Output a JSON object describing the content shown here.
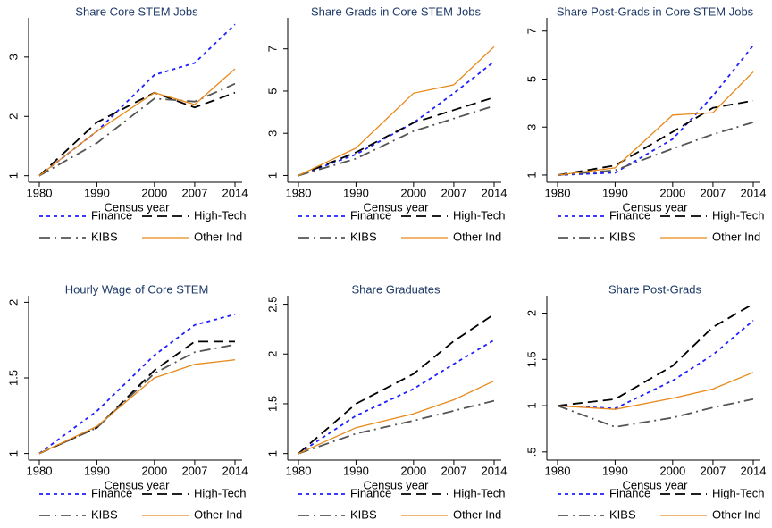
{
  "chart_data": [
    {
      "type": "line",
      "title": "Share Core STEM Jobs",
      "xlabel": "Census year",
      "x": [
        1980,
        1990,
        2000,
        2007,
        2014
      ],
      "xlim": [
        1980,
        2014
      ],
      "xticks": [
        1980,
        1990,
        2000,
        2007,
        2014
      ],
      "ylim": [
        0.95,
        3.6
      ],
      "yticks": [
        1,
        2,
        3
      ],
      "legend": "bottom",
      "series": [
        {
          "name": "Finance",
          "color": "#1f1fff",
          "values": [
            1,
            1.75,
            2.7,
            2.9,
            3.55
          ]
        },
        {
          "name": "High-Tech",
          "color": "#000000",
          "values": [
            1,
            1.9,
            2.4,
            2.15,
            2.4
          ]
        },
        {
          "name": "KIBS",
          "color": "#555555",
          "values": [
            1,
            1.55,
            2.3,
            2.25,
            2.55
          ]
        },
        {
          "name": "Other Ind",
          "color": "#e8891a",
          "values": [
            1,
            1.75,
            2.4,
            2.2,
            2.8
          ]
        }
      ]
    },
    {
      "type": "line",
      "title": "Share Grads in Core STEM Jobs",
      "xlabel": "Census year",
      "x": [
        1980,
        1990,
        2000,
        2007,
        2014
      ],
      "xlim": [
        1980,
        2014
      ],
      "xticks": [
        1980,
        1990,
        2000,
        2007,
        2014
      ],
      "ylim": [
        0.85,
        8.3
      ],
      "yticks": [
        1,
        3,
        5,
        7
      ],
      "legend": "bottom",
      "series": [
        {
          "name": "Finance",
          "color": "#1f1fff",
          "values": [
            1,
            2.0,
            3.5,
            4.9,
            6.4
          ]
        },
        {
          "name": "High-Tech",
          "color": "#000000",
          "values": [
            1,
            2.1,
            3.5,
            4.1,
            4.7
          ]
        },
        {
          "name": "KIBS",
          "color": "#555555",
          "values": [
            1,
            1.8,
            3.1,
            3.7,
            4.3
          ]
        },
        {
          "name": "Other Ind",
          "color": "#e8891a",
          "values": [
            1,
            2.3,
            4.9,
            5.3,
            7.1
          ]
        }
      ]
    },
    {
      "type": "line",
      "title": "Share Post-Grads in Core STEM Jobs",
      "xlabel": "Census year",
      "x": [
        1980,
        1990,
        2000,
        2007,
        2014
      ],
      "xlim": [
        1980,
        2014
      ],
      "xticks": [
        1980,
        1990,
        2000,
        2007,
        2014
      ],
      "ylim": [
        0.85,
        7.4
      ],
      "yticks": [
        1,
        3,
        5,
        7
      ],
      "legend": "bottom",
      "series": [
        {
          "name": "Finance",
          "color": "#1f1fff",
          "values": [
            1,
            1.1,
            2.5,
            4.3,
            6.4
          ]
        },
        {
          "name": "High-Tech",
          "color": "#000000",
          "values": [
            1,
            1.4,
            2.8,
            3.8,
            4.1
          ]
        },
        {
          "name": "KIBS",
          "color": "#555555",
          "values": [
            1,
            1.2,
            2.1,
            2.7,
            3.2
          ]
        },
        {
          "name": "Other Ind",
          "color": "#e8891a",
          "values": [
            1,
            1.3,
            3.5,
            3.6,
            5.3
          ]
        }
      ]
    },
    {
      "type": "line",
      "title": "Hourly Wage of Core STEM",
      "xlabel": "Census year",
      "x": [
        1980,
        1990,
        2000,
        2007,
        2014
      ],
      "xlim": [
        1980,
        2014
      ],
      "xticks": [
        1980,
        1990,
        2000,
        2007,
        2014
      ],
      "ylim": [
        0.98,
        2.02
      ],
      "yticks": [
        1,
        1.5,
        2
      ],
      "legend": "bottom",
      "series": [
        {
          "name": "Finance",
          "color": "#1f1fff",
          "values": [
            1,
            1.28,
            1.65,
            1.85,
            1.92
          ]
        },
        {
          "name": "High-Tech",
          "color": "#000000",
          "values": [
            1,
            1.17,
            1.55,
            1.74,
            1.74
          ]
        },
        {
          "name": "KIBS",
          "color": "#555555",
          "values": [
            1,
            1.17,
            1.53,
            1.67,
            1.72
          ]
        },
        {
          "name": "Other Ind",
          "color": "#e8891a",
          "values": [
            1,
            1.18,
            1.5,
            1.59,
            1.62
          ]
        }
      ]
    },
    {
      "type": "line",
      "title": "Share Graduates",
      "xlabel": "Census year",
      "x": [
        1980,
        1990,
        2000,
        2007,
        2014
      ],
      "xlim": [
        1980,
        2014
      ],
      "xticks": [
        1980,
        1990,
        2000,
        2007,
        2014
      ],
      "ylim": [
        0.97,
        2.55
      ],
      "yticks": [
        1,
        1.5,
        2,
        2.5
      ],
      "legend": "bottom",
      "series": [
        {
          "name": "Finance",
          "color": "#1f1fff",
          "values": [
            1,
            1.38,
            1.65,
            1.9,
            2.14
          ]
        },
        {
          "name": "High-Tech",
          "color": "#000000",
          "values": [
            1,
            1.5,
            1.8,
            2.13,
            2.4
          ]
        },
        {
          "name": "KIBS",
          "color": "#555555",
          "values": [
            1,
            1.2,
            1.33,
            1.43,
            1.53
          ]
        },
        {
          "name": "Other Ind",
          "color": "#e8891a",
          "values": [
            1,
            1.26,
            1.4,
            1.54,
            1.73
          ]
        }
      ]
    },
    {
      "type": "line",
      "title": "Share Post-Grads",
      "xlabel": "Census year",
      "x": [
        1980,
        1990,
        2000,
        2007,
        2014
      ],
      "xlim": [
        1980,
        2014
      ],
      "xticks": [
        1980,
        1990,
        2000,
        2007,
        2014
      ],
      "ylim": [
        0.45,
        2.15
      ],
      "yticks": [
        {
          "value": 0.5,
          "label": ".5"
        },
        1,
        1.5,
        2
      ],
      "legend": "bottom",
      "series": [
        {
          "name": "Finance",
          "color": "#1f1fff",
          "values": [
            1,
            0.97,
            1.27,
            1.55,
            1.92
          ]
        },
        {
          "name": "High-Tech",
          "color": "#000000",
          "values": [
            1,
            1.07,
            1.43,
            1.85,
            2.1
          ]
        },
        {
          "name": "KIBS",
          "color": "#555555",
          "values": [
            1,
            0.77,
            0.87,
            0.98,
            1.07
          ]
        },
        {
          "name": "Other Ind",
          "color": "#e8891a",
          "values": [
            1,
            0.96,
            1.08,
            1.18,
            1.36
          ]
        }
      ]
    }
  ]
}
